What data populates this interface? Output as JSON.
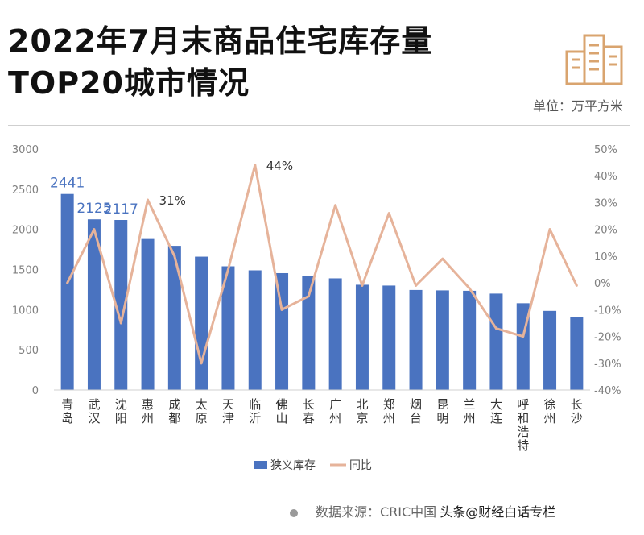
{
  "header": {
    "title_line1": "2022年7月末商品住宅库存量",
    "title_line2": "TOP20城市情况",
    "unit": "单位：万平方米",
    "logo_icon": "buildings-icon"
  },
  "footer": {
    "source": "数据来源：CRIC中国",
    "watermark": "头条@财经白话专栏"
  },
  "colors": {
    "bar": "#4a73c0",
    "line": "#e6b39a",
    "axis_text": "#7f7f7f",
    "logo": "#d9a46f"
  },
  "chart_data": {
    "type": "bar+line",
    "categories": [
      "青岛",
      "武汉",
      "沈阳",
      "惠州",
      "成都",
      "太原",
      "天津",
      "临沂",
      "佛山",
      "长春",
      "广州",
      "北京",
      "郑州",
      "烟台",
      "昆明",
      "兰州",
      "大连",
      "呼和浩特",
      "徐州",
      "长沙"
    ],
    "series": [
      {
        "name": "狭义库存",
        "type": "bar",
        "axis": "left",
        "values": [
          2441,
          2125,
          2117,
          1880,
          1795,
          1660,
          1540,
          1490,
          1455,
          1420,
          1390,
          1310,
          1300,
          1245,
          1240,
          1235,
          1200,
          1080,
          985,
          910
        ]
      },
      {
        "name": "同比",
        "type": "line",
        "axis": "right",
        "values": [
          0.0,
          0.2,
          -0.15,
          0.31,
          0.1,
          -0.3,
          0.05,
          0.44,
          -0.1,
          -0.05,
          0.29,
          -0.01,
          0.26,
          -0.01,
          0.09,
          -0.02,
          -0.17,
          -0.2,
          0.2,
          -0.01
        ]
      }
    ],
    "data_labels": [
      {
        "series": "狭义库存",
        "index": 0,
        "text": "2441"
      },
      {
        "series": "狭义库存",
        "index": 1,
        "text": "2125"
      },
      {
        "series": "狭义库存",
        "index": 2,
        "text": "2117"
      },
      {
        "series": "同比",
        "index": 3,
        "text": "31%"
      },
      {
        "series": "同比",
        "index": 7,
        "text": "44%"
      }
    ],
    "y_left": {
      "min": 0,
      "max": 3000,
      "ticks": [
        "0",
        "500",
        "1000",
        "1500",
        "2000",
        "2500",
        "3000"
      ]
    },
    "y_right": {
      "min": -0.4,
      "max": 0.5,
      "ticks": [
        "-40%",
        "-30%",
        "-20%",
        "-10%",
        "0%",
        "10%",
        "20%",
        "30%",
        "40%",
        "50%"
      ]
    },
    "legend": {
      "position": "bottom",
      "items": [
        "狭义库存",
        "同比"
      ]
    },
    "grid": false
  }
}
